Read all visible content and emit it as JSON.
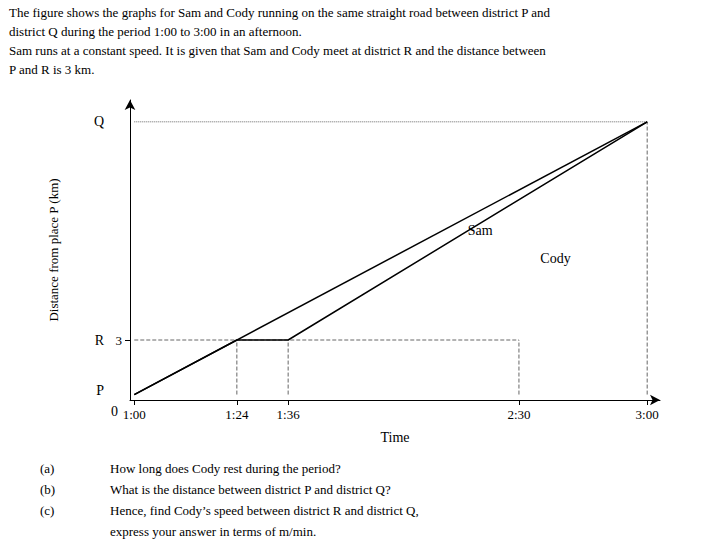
{
  "chart_data": {
    "type": "line",
    "title": [
      "The figure shows the graphs for Sam and Cody running on the same straight road between district P and",
      "district Q during the period 1:00 to 3:00 in an afternoon.",
      "Sam runs at a constant speed. It is given that Sam and Cody meet at district R and the distance between",
      "P and R is 3 km."
    ],
    "questions": [
      {
        "label": "(a)",
        "text": "How long does Cody rest during the period?"
      },
      {
        "label": "(b)",
        "text": "What is the distance between district P and district Q?"
      },
      {
        "label": "(c)",
        "text": "Hence, find Cody’s speed between district R and district Q,"
      },
      {
        "text": "express your answer in terms of m/min."
      }
    ],
    "x_label": "Time",
    "y_label": "Distance from place P (km)",
    "xlim": [
      59,
      183
    ],
    "ylim": [
      -0.3,
      16.2
    ],
    "xticks": [
      {
        "value": 60,
        "label": "1:00"
      },
      {
        "value": 84,
        "label": "1:24"
      },
      {
        "value": 96,
        "label": "1:36"
      },
      {
        "value": 150,
        "label": "2:30"
      },
      {
        "value": 180,
        "label": "3:00"
      }
    ],
    "yticks": [
      3
    ],
    "grid": false,
    "series": [
      {
        "name": "Sam",
        "x": [
          60,
          180
        ],
        "values": [
          0,
          15
        ],
        "color": "#000000",
        "line_style": "solid"
      },
      {
        "name": "Cody",
        "x": [
          60,
          84,
          96,
          180
        ],
        "values": [
          0,
          3,
          3,
          15
        ],
        "color": "#000000",
        "line_style": "solid"
      },
      {
        "x": [
          60,
          150
        ],
        "values": [
          3,
          3
        ],
        "color": "#666666",
        "line_style": "dashed"
      },
      {
        "x": [
          60,
          180
        ],
        "values": [
          15,
          15
        ],
        "color": "#666666",
        "line_style": "dotted"
      },
      {
        "x": [
          84,
          84
        ],
        "values": [
          0,
          3
        ],
        "color": "#666666",
        "line_style": "dashed"
      },
      {
        "x": [
          96,
          96
        ],
        "values": [
          0,
          3
        ],
        "color": "#666666",
        "line_style": "dashed"
      },
      {
        "x": [
          150,
          150
        ],
        "values": [
          0,
          3
        ],
        "color": "#666666",
        "line_style": "dashed"
      },
      {
        "x": [
          180,
          180
        ],
        "values": [
          0,
          15
        ],
        "color": "#666666",
        "line_style": "dashed"
      }
    ],
    "annotations": [
      {
        "text": "Sam",
        "x": 138,
        "y": 9
      },
      {
        "text": "Cody",
        "x": 155,
        "y": 7.5
      },
      {
        "text": "P",
        "x": 57.5,
        "y": 0.2
      },
      {
        "text": "0",
        "x": 60.5,
        "y": -0.5
      },
      {
        "text": "R",
        "x": 57.5,
        "y": 3
      },
      {
        "text": "Q",
        "x": 57.5,
        "y": 15
      }
    ]
  }
}
